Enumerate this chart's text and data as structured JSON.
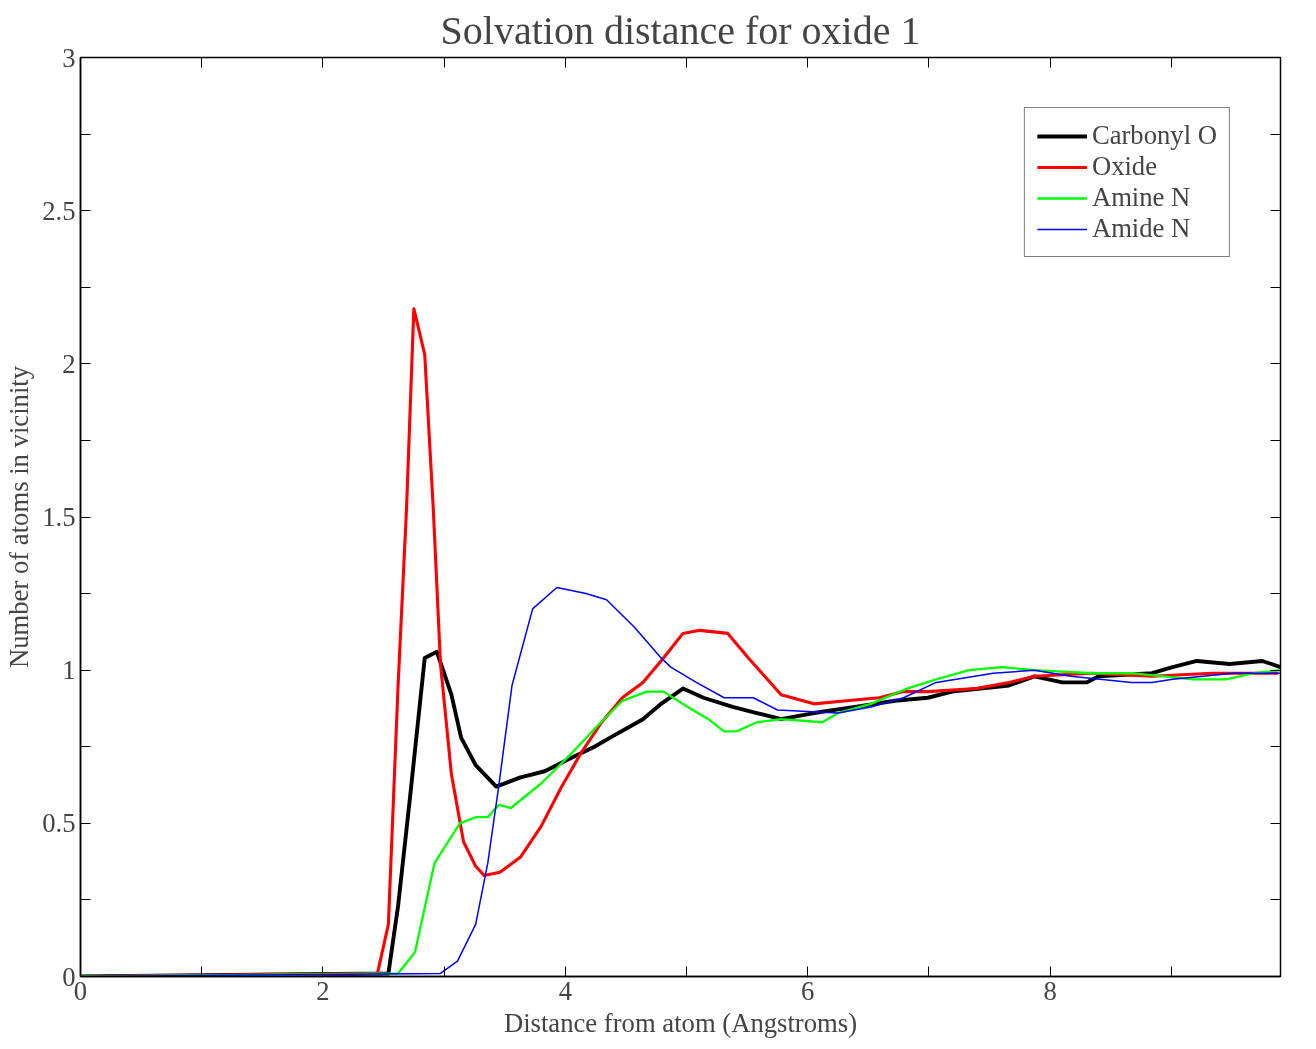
{
  "chart_data": {
    "type": "line",
    "title": "Solvation distance for oxide 1",
    "xlabel": "Distance from atom (Angstroms)",
    "ylabel": "Number of atoms in vicinity",
    "xlim": [
      0,
      9.9
    ],
    "ylim": [
      0,
      3
    ],
    "xticks": [
      0,
      {
        "value": 1,
        "label": null
      },
      2,
      {
        "value": 3,
        "label": null
      },
      4,
      {
        "value": 5,
        "label": null
      },
      6,
      {
        "value": 7,
        "label": null
      },
      8,
      {
        "value": 9,
        "label": null
      }
    ],
    "yticks": [
      0,
      {
        "value": 0.25,
        "label": null
      },
      0.5,
      {
        "value": 0.75,
        "label": null
      },
      1,
      {
        "value": 1.25,
        "label": null
      },
      1.5,
      {
        "value": 1.75,
        "label": null
      },
      2,
      {
        "value": 2.25,
        "label": null
      },
      2.5,
      {
        "value": 2.75,
        "label": null
      },
      3
    ],
    "grid": false,
    "legend": "top right",
    "marker": "none",
    "line_style": "solid",
    "series": [
      {
        "name": "Carbonyl O",
        "color": "#000000",
        "x": [
          0,
          2.54,
          2.62,
          2.72,
          2.84,
          2.94,
          3.06,
          3.14,
          3.26,
          3.43,
          3.63,
          3.83,
          4.03,
          4.24,
          4.37,
          4.64,
          4.79,
          4.97,
          5.14,
          5.38,
          5.58,
          5.78,
          6.05,
          6.39,
          6.72,
          6.99,
          7.19,
          7.66,
          7.87,
          8.1,
          8.3,
          8.4,
          8.84,
          9.01,
          9.21,
          9.48,
          9.75,
          9.9
        ],
        "values": [
          0,
          0.01,
          0.23,
          0.59,
          1.04,
          1.06,
          0.92,
          0.78,
          0.69,
          0.62,
          0.65,
          0.67,
          0.71,
          0.75,
          0.78,
          0.84,
          0.89,
          0.94,
          0.91,
          0.88,
          0.86,
          0.84,
          0.86,
          0.88,
          0.9,
          0.91,
          0.93,
          0.95,
          0.98,
          0.96,
          0.96,
          0.98,
          0.99,
          1.01,
          1.03,
          1.02,
          1.03,
          1.01
        ]
      },
      {
        "name": "Oxide",
        "color": "#ff0000",
        "x": [
          0,
          2.45,
          2.54,
          2.62,
          2.69,
          2.75,
          2.84,
          2.91,
          2.97,
          3.06,
          3.16,
          3.26,
          3.33,
          3.46,
          3.63,
          3.8,
          3.97,
          4.13,
          4.3,
          4.47,
          4.64,
          4.81,
          4.97,
          5.11,
          5.34,
          5.51,
          5.78,
          6.05,
          6.32,
          6.59,
          6.79,
          6.99,
          7.39,
          7.66,
          7.87,
          8.34,
          8.84,
          9.34,
          9.88
        ],
        "values": [
          0,
          0.01,
          0.17,
          0.95,
          1.53,
          2.18,
          2.03,
          1.53,
          1.02,
          0.66,
          0.44,
          0.36,
          0.33,
          0.34,
          0.39,
          0.49,
          0.62,
          0.73,
          0.83,
          0.91,
          0.96,
          1.04,
          1.12,
          1.13,
          1.12,
          1.04,
          0.92,
          0.89,
          0.9,
          0.91,
          0.93,
          0.93,
          0.94,
          0.96,
          0.98,
          0.99,
          0.98,
          0.99,
          0.99
        ]
      },
      {
        "name": "Amine N",
        "color": "#00ff00",
        "x": [
          0,
          2.62,
          2.76,
          2.92,
          3.13,
          3.26,
          3.36,
          3.45,
          3.55,
          3.8,
          4.03,
          4.27,
          4.47,
          4.67,
          4.81,
          5.01,
          5.18,
          5.31,
          5.41,
          5.58,
          5.78,
          6.12,
          6.25,
          6.52,
          6.82,
          7.06,
          7.33,
          7.6,
          7.87,
          8.34,
          8.67,
          9.18,
          9.45,
          9.68,
          9.9
        ],
        "values": [
          0,
          0.01,
          0.08,
          0.37,
          0.5,
          0.52,
          0.52,
          0.56,
          0.55,
          0.63,
          0.72,
          0.82,
          0.9,
          0.93,
          0.93,
          0.88,
          0.84,
          0.8,
          0.8,
          0.83,
          0.84,
          0.83,
          0.86,
          0.89,
          0.94,
          0.97,
          1.0,
          1.01,
          1.0,
          0.99,
          0.99,
          0.97,
          0.97,
          0.99,
          1.0
        ]
      },
      {
        "name": "Amide N",
        "color": "#0000ff",
        "x": [
          0,
          2.97,
          3.11,
          3.26,
          3.36,
          3.45,
          3.56,
          3.73,
          3.93,
          4.17,
          4.34,
          4.57,
          4.79,
          4.87,
          5.08,
          5.31,
          5.55,
          5.75,
          6.25,
          6.52,
          6.79,
          7.06,
          7.53,
          7.87,
          8.17,
          8.67,
          8.84,
          9.01,
          9.51,
          9.9
        ],
        "values": [
          0,
          0.01,
          0.05,
          0.17,
          0.37,
          0.62,
          0.95,
          1.2,
          1.27,
          1.25,
          1.23,
          1.14,
          1.04,
          1.01,
          0.96,
          0.91,
          0.91,
          0.87,
          0.86,
          0.88,
          0.91,
          0.96,
          0.99,
          1.0,
          0.98,
          0.96,
          0.96,
          0.97,
          0.99,
          0.99
        ]
      }
    ]
  }
}
